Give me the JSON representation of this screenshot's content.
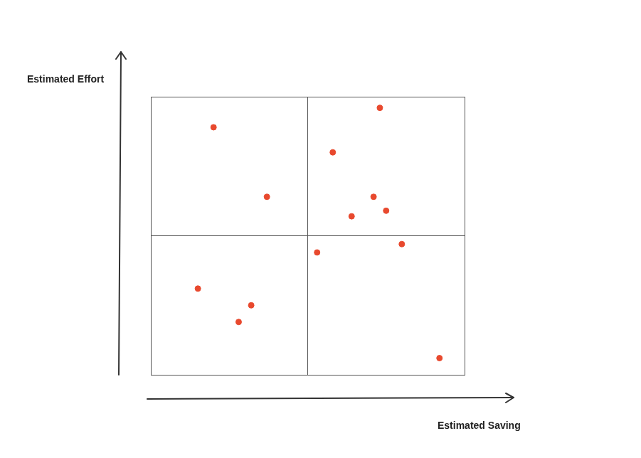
{
  "chart_data": {
    "type": "scatter",
    "x_label": "Estimated Saving",
    "y_label": "Estimated Effort",
    "x": [
      2.0,
      3.7,
      7.3,
      5.8,
      7.1,
      7.5,
      6.4,
      5.3,
      8.0,
      1.5,
      3.2,
      2.8,
      9.2
    ],
    "values": [
      8.9,
      6.4,
      9.6,
      8.0,
      6.4,
      5.9,
      5.7,
      4.4,
      4.7,
      3.1,
      2.5,
      1.9,
      0.6
    ],
    "color": "#e8492e",
    "marker": "circle",
    "xlim": [
      0,
      10
    ],
    "ylim": [
      0,
      10
    ],
    "xticks": [
      0,
      5,
      10
    ],
    "yticks": [
      0,
      5,
      10
    ],
    "grid": true,
    "tick_labels": false
  }
}
